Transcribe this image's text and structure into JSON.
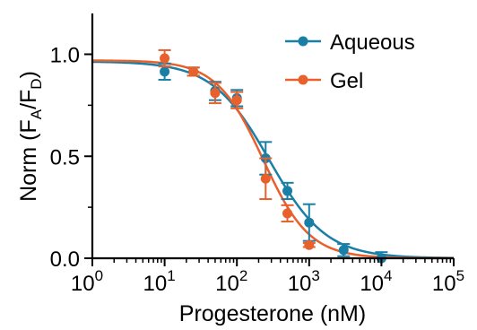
{
  "chart_data": {
    "type": "scatter",
    "xscale": "log",
    "xlim": [
      1,
      100000
    ],
    "ylim": [
      0,
      1.2
    ],
    "xlabel": "Progesterone (nM)",
    "ylabel_parts": [
      "Norm (F",
      "A",
      "/F",
      "D",
      ")"
    ],
    "x_ticks": [
      {
        "base": "10",
        "exp": "0",
        "value": 1
      },
      {
        "base": "10",
        "exp": "1",
        "value": 10
      },
      {
        "base": "10",
        "exp": "2",
        "value": 100
      },
      {
        "base": "10",
        "exp": "3",
        "value": 1000
      },
      {
        "base": "10",
        "exp": "4",
        "value": 10000
      },
      {
        "base": "10",
        "exp": "5",
        "value": 100000
      }
    ],
    "y_ticks": [
      {
        "label": "0.0",
        "value": 0
      },
      {
        "label": "0.5",
        "value": 0.5
      },
      {
        "label": "1.0",
        "value": 1.0
      }
    ],
    "legend_position": "top-right",
    "series": [
      {
        "name": "Aqueous",
        "color": "#1a7fa6",
        "x": [
          10,
          25,
          50,
          100,
          250,
          500,
          1000,
          3000,
          10000
        ],
        "y": [
          0.915,
          0.915,
          0.82,
          0.785,
          0.49,
          0.33,
          0.175,
          0.04,
          0.0
        ],
        "err": [
          0.04,
          0.02,
          0.045,
          0.04,
          0.08,
          0.04,
          0.09,
          0.03,
          0.03
        ],
        "fit": {
          "top": 0.965,
          "bottom": 0.0,
          "ec50": 280,
          "hill": 1.1
        }
      },
      {
        "name": "Gel",
        "color": "#e8602c",
        "x": [
          10,
          25,
          50,
          100,
          250,
          500,
          1000
        ],
        "y": [
          0.98,
          0.915,
          0.81,
          0.775,
          0.39,
          0.22,
          0.065
        ],
        "err": [
          0.04,
          0.02,
          0.05,
          0.04,
          0.1,
          0.04,
          0.01
        ],
        "fit": {
          "top": 0.97,
          "bottom": 0.0,
          "ec50": 230,
          "hill": 1.35
        }
      }
    ]
  }
}
